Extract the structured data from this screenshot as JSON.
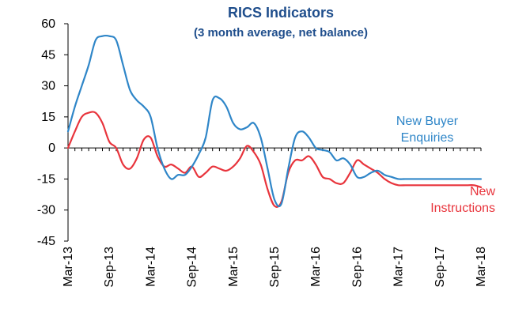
{
  "chart_data": {
    "type": "line",
    "title": "RICS Indicators",
    "subtitle": "(3 month average, net balance)",
    "ylim": [
      -45,
      60
    ],
    "yticks": [
      60,
      45,
      30,
      15,
      0,
      -15,
      -30,
      -45
    ],
    "xlim": [
      0,
      60
    ],
    "xticks": [
      {
        "label": "Mar-13",
        "x": 0
      },
      {
        "label": "Sep-13",
        "x": 6
      },
      {
        "label": "Mar-14",
        "x": 12
      },
      {
        "label": "Sep-14",
        "x": 18
      },
      {
        "label": "Mar-15",
        "x": 24
      },
      {
        "label": "Sep-15",
        "x": 30
      },
      {
        "label": "Mar-16",
        "x": 36
      },
      {
        "label": "Sep-16",
        "x": 42
      },
      {
        "label": "Mar-17",
        "x": 48
      },
      {
        "label": "Sep-17",
        "x": 54
      },
      {
        "label": "Mar-18",
        "x": 60
      }
    ],
    "series": [
      {
        "name": "New Buyer Enquiries",
        "label_lines": [
          "New Buyer",
          "Enquiries"
        ],
        "color": "#2f86c8",
        "values": [
          8,
          20,
          30,
          40,
          52,
          54,
          54,
          52,
          40,
          28,
          23,
          20,
          15,
          0,
          -10,
          -15,
          -13,
          -13,
          -9,
          -3,
          5,
          23,
          24,
          20,
          12,
          9,
          10,
          12,
          5,
          -10,
          -25,
          -27,
          -10,
          5,
          8,
          5,
          0,
          -1,
          -2,
          -6,
          -5,
          -8,
          -14,
          -14,
          -12,
          -11,
          -13,
          -14,
          -15,
          -15,
          -15,
          -15,
          -15,
          -15,
          -15,
          -15,
          -15,
          -15,
          -15,
          -15,
          -15
        ]
      },
      {
        "name": "New Instructions",
        "label_lines": [
          "New",
          "Instructions"
        ],
        "color": "#e8343c",
        "values": [
          0,
          8,
          15,
          17,
          17,
          12,
          3,
          0,
          -8,
          -10,
          -5,
          4,
          5,
          -4,
          -9,
          -8,
          -10,
          -12,
          -9,
          -14,
          -12,
          -9,
          -10,
          -11,
          -9,
          -5,
          1,
          -2,
          -8,
          -20,
          -28,
          -26,
          -12,
          -6,
          -6,
          -4,
          -8,
          -14,
          -15,
          -17,
          -17,
          -12,
          -6,
          -8,
          -10,
          -12,
          -15,
          -17,
          -18,
          -18,
          -18,
          -18,
          -18,
          -18,
          -18,
          -18,
          -18,
          -18,
          -18,
          -18,
          -19
        ]
      }
    ]
  }
}
